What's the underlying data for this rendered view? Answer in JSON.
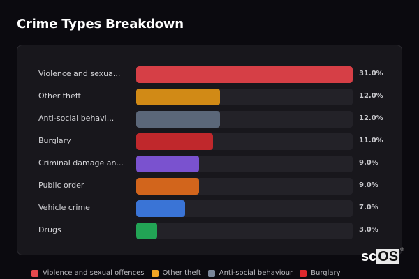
{
  "title": "Crime Types Breakdown",
  "chart_data": {
    "type": "bar",
    "orientation": "horizontal",
    "title": "Crime Types Breakdown",
    "xlabel": "",
    "ylabel": "",
    "xlim": [
      0,
      31
    ],
    "grid": false,
    "legend_position": "bottom",
    "categories": [
      "Violence and sexual offences",
      "Other theft",
      "Anti-social behaviour",
      "Burglary",
      "Criminal damage and arson",
      "Public order",
      "Vehicle crime",
      "Drugs"
    ],
    "display_labels": [
      "Violence and sexua...",
      "Other theft",
      "Anti-social behavi...",
      "Burglary",
      "Criminal damage an...",
      "Public order",
      "Vehicle crime",
      "Drugs"
    ],
    "values": [
      31.0,
      12.0,
      12.0,
      11.0,
      9.0,
      9.0,
      7.0,
      3.0
    ],
    "value_labels": [
      "31.0%",
      "12.0%",
      "12.0%",
      "11.0%",
      "9.0%",
      "9.0%",
      "7.0%",
      "3.0%"
    ],
    "colors": [
      "#d63f46",
      "#d18a16",
      "#5b6779",
      "#c0282c",
      "#7a52cf",
      "#d2651c",
      "#3a74d6",
      "#22a455"
    ]
  },
  "legend": [
    {
      "label": "Violence and sexual offences",
      "color": "#e5484d"
    },
    {
      "label": "Other theft",
      "color": "#f5a524"
    },
    {
      "label": "Anti-social behaviour",
      "color": "#7a8699"
    },
    {
      "label": "Burglary",
      "color": "#e0282e"
    }
  ],
  "watermark": {
    "left": "sc",
    "right": "OS",
    "mark": "®"
  }
}
